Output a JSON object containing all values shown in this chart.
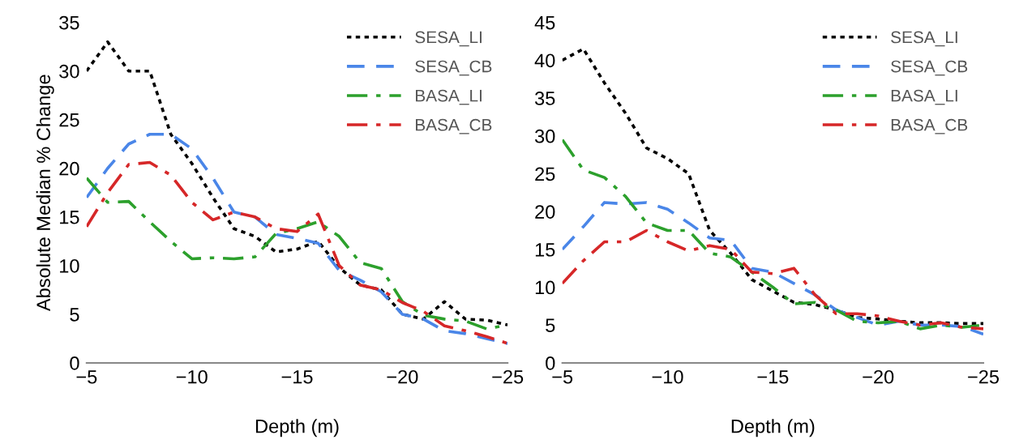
{
  "chart_data": [
    {
      "type": "line",
      "ylabel": "Absolute Median % Change",
      "xlabel": "Depth (m)",
      "legend": "top right",
      "grid": false,
      "x": [
        -5,
        -6,
        -7,
        -8,
        -9,
        -10,
        -11,
        -12,
        -13,
        -14,
        -15,
        -16,
        -17,
        -18,
        -19,
        -20,
        -21,
        -22,
        -23,
        -24,
        -25
      ],
      "xlim": [
        -5,
        -25
      ],
      "xticks": [
        {
          "value": -5,
          "label": "−5"
        },
        {
          "value": -10,
          "label": "−10"
        },
        {
          "value": -15,
          "label": "−15"
        },
        {
          "value": -20,
          "label": "−20"
        },
        {
          "value": -25,
          "label": "−25"
        }
      ],
      "ylim": [
        0,
        35
      ],
      "yticks": [
        0,
        5,
        10,
        15,
        20,
        25,
        30,
        35
      ],
      "series": [
        {
          "name": "SESA_LI",
          "color": "#000000",
          "line_style": "dotted",
          "values": [
            30,
            33,
            30,
            30,
            23.5,
            20.5,
            17,
            13.8,
            13,
            11.4,
            11.7,
            12.5,
            9.8,
            8,
            7.5,
            5,
            4.5,
            6.3,
            4.5,
            4.4,
            3.9
          ]
        },
        {
          "name": "SESA_CB",
          "color": "#4a86e8",
          "line_style": "dashed",
          "values": [
            17,
            20,
            22.5,
            23.5,
            23.5,
            22,
            19,
            15.5,
            15,
            13.2,
            12.8,
            12.3,
            9.5,
            8.5,
            7.3,
            5,
            4.5,
            3.3,
            3,
            2.5,
            2
          ]
        },
        {
          "name": "BASA_LI",
          "color": "#2ca02c",
          "line_style": "dashdot",
          "values": [
            19,
            16.5,
            16.6,
            14.5,
            12.5,
            10.7,
            10.8,
            10.7,
            10.9,
            13.3,
            13.8,
            14.5,
            13,
            10.3,
            9.7,
            6.3,
            4.9,
            4.5,
            4.3,
            3.5,
            3.9
          ]
        },
        {
          "name": "BASA_CB",
          "color": "#d62728",
          "line_style": "dashdot",
          "values": [
            14,
            17.5,
            20.4,
            20.6,
            19.3,
            16.5,
            14.7,
            15.5,
            15,
            13.8,
            13.5,
            15.3,
            10,
            8,
            7.5,
            6.2,
            5.3,
            3.8,
            3.3,
            2.7,
            2
          ]
        }
      ]
    },
    {
      "type": "line",
      "xlabel": "Depth (m)",
      "legend": "top right",
      "grid": false,
      "x": [
        -5,
        -6,
        -7,
        -8,
        -9,
        -10,
        -11,
        -12,
        -13,
        -14,
        -15,
        -16,
        -17,
        -18,
        -19,
        -20,
        -21,
        -22,
        -23,
        -24,
        -25
      ],
      "xlim": [
        -5,
        -25
      ],
      "xticks": [
        {
          "value": -5,
          "label": "−5"
        },
        {
          "value": -10,
          "label": "−10"
        },
        {
          "value": -15,
          "label": "−15"
        },
        {
          "value": -20,
          "label": "−20"
        },
        {
          "value": -25,
          "label": "−25"
        }
      ],
      "ylim": [
        0,
        45
      ],
      "yticks": [
        0,
        5,
        10,
        15,
        20,
        25,
        30,
        35,
        40,
        45
      ],
      "series": [
        {
          "name": "SESA_LI",
          "color": "#000000",
          "line_style": "dotted",
          "values": [
            40,
            41.5,
            37,
            33,
            28.4,
            27,
            25,
            17.5,
            14.5,
            11,
            9.5,
            8,
            7.7,
            7,
            6,
            5.8,
            5.5,
            5.3,
            5.3,
            5.2,
            5.2
          ]
        },
        {
          "name": "SESA_CB",
          "color": "#4a86e8",
          "line_style": "dashed",
          "values": [
            15,
            18,
            21.2,
            21,
            21.2,
            20.3,
            18.5,
            16.5,
            16.2,
            12.5,
            12,
            10.5,
            9,
            7,
            6,
            5,
            5.5,
            5,
            5,
            4.8,
            3.8
          ]
        },
        {
          "name": "BASA_LI",
          "color": "#2ca02c",
          "line_style": "dashdot",
          "values": [
            29.5,
            25.5,
            24.5,
            22,
            18.5,
            17.5,
            17.5,
            14.5,
            14,
            12,
            10,
            7.8,
            8,
            7,
            5.5,
            5.3,
            5.5,
            4.5,
            5,
            4.7,
            5
          ]
        },
        {
          "name": "BASA_CB",
          "color": "#d62728",
          "line_style": "dashdot",
          "values": [
            10.5,
            13.5,
            16,
            16,
            17.5,
            16,
            14.8,
            15.5,
            15,
            12,
            11.8,
            12.5,
            9,
            6.5,
            6.5,
            6.2,
            5.5,
            5,
            5.3,
            4.7,
            4.5
          ]
        }
      ]
    }
  ]
}
